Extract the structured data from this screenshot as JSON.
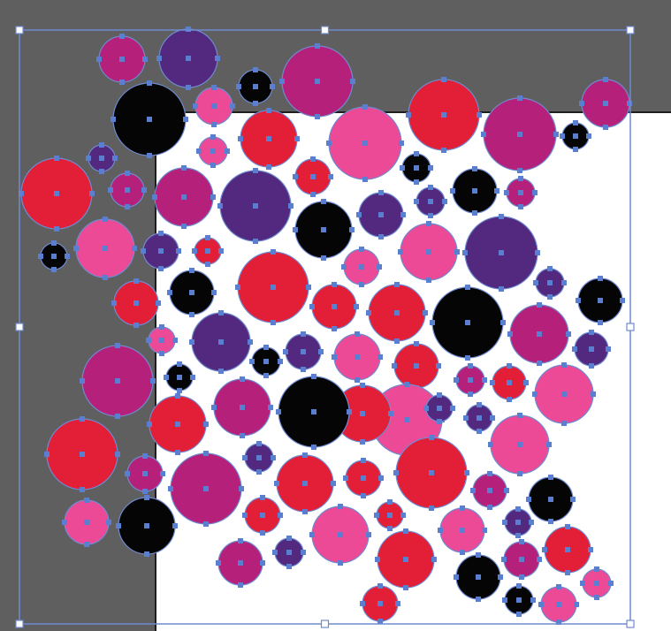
{
  "canvas": {
    "pasteboard_color": "#5f5f5f",
    "artboard_color": "#ffffff",
    "artboard_edge_color": "#1e1e1e",
    "selection_color": "#6f8ad0",
    "anchor_color": "#5b7fd0",
    "handle_fill": "#ffffff"
  },
  "palette": {
    "red": "#e31e37",
    "pink": "#ec4a96",
    "magenta": "#b5217a",
    "purple": "#53287f",
    "black": "#050505"
  },
  "selection": {
    "object_count": 93,
    "handles": [
      "top-left",
      "top-center",
      "top-right",
      "middle-left",
      "middle-right",
      "bottom-left",
      "bottom-center",
      "bottom-right"
    ]
  },
  "circles": [
    {
      "color": "magenta"
    },
    {
      "color": "purple"
    },
    {
      "color": "black"
    },
    {
      "color": "black"
    },
    {
      "color": "magenta"
    },
    {
      "color": "pink"
    },
    {
      "color": "red"
    },
    {
      "color": "magenta"
    },
    {
      "color": "pink"
    },
    {
      "color": "red"
    },
    {
      "color": "magenta"
    },
    {
      "color": "pink"
    },
    {
      "color": "black"
    },
    {
      "color": "purple"
    },
    {
      "color": "red"
    },
    {
      "color": "magenta"
    },
    {
      "color": "black"
    },
    {
      "color": "red"
    },
    {
      "color": "magenta"
    },
    {
      "color": "purple"
    },
    {
      "color": "magenta"
    },
    {
      "color": "black"
    },
    {
      "color": "purple"
    },
    {
      "color": "purple"
    },
    {
      "color": "black"
    },
    {
      "color": "pink"
    },
    {
      "color": "black"
    },
    {
      "color": "pink"
    },
    {
      "color": "purple"
    },
    {
      "color": "red"
    },
    {
      "color": "purple"
    },
    {
      "color": "pink"
    },
    {
      "color": "red"
    },
    {
      "color": "black"
    },
    {
      "color": "red"
    },
    {
      "color": "red"
    },
    {
      "color": "purple"
    },
    {
      "color": "black"
    },
    {
      "color": "red"
    },
    {
      "color": "black"
    },
    {
      "color": "pink"
    },
    {
      "color": "purple"
    },
    {
      "color": "magenta"
    },
    {
      "color": "pink"
    },
    {
      "color": "black"
    },
    {
      "color": "purple"
    },
    {
      "color": "pink"
    },
    {
      "color": "red"
    },
    {
      "color": "purple"
    },
    {
      "color": "magenta"
    },
    {
      "color": "black"
    },
    {
      "color": "magenta"
    },
    {
      "color": "red"
    },
    {
      "color": "pink"
    },
    {
      "color": "purple"
    },
    {
      "color": "red"
    },
    {
      "color": "red"
    },
    {
      "color": "magenta"
    },
    {
      "color": "black"
    },
    {
      "color": "purple"
    },
    {
      "color": "pink"
    },
    {
      "color": "magenta"
    },
    {
      "color": "red"
    },
    {
      "color": "purple"
    },
    {
      "color": "red"
    },
    {
      "color": "black"
    },
    {
      "color": "magenta"
    },
    {
      "color": "red"
    },
    {
      "color": "red"
    },
    {
      "color": "magenta"
    },
    {
      "color": "red"
    },
    {
      "color": "pink"
    },
    {
      "color": "red"
    },
    {
      "color": "purple"
    },
    {
      "color": "black"
    },
    {
      "color": "pink"
    },
    {
      "color": "pink"
    },
    {
      "color": "purple"
    },
    {
      "color": "magenta"
    },
    {
      "color": "red"
    },
    {
      "color": "black"
    },
    {
      "color": "red"
    },
    {
      "color": "magenta"
    },
    {
      "color": "pink"
    },
    {
      "color": "black"
    },
    {
      "color": "pink"
    },
    {
      "color": "red"
    },
    {
      "color": "red"
    },
    {
      "color": "pink"
    },
    {
      "color": "magenta"
    },
    {
      "color": "purple"
    },
    {
      "color": "black"
    },
    {
      "color": "red"
    }
  ]
}
